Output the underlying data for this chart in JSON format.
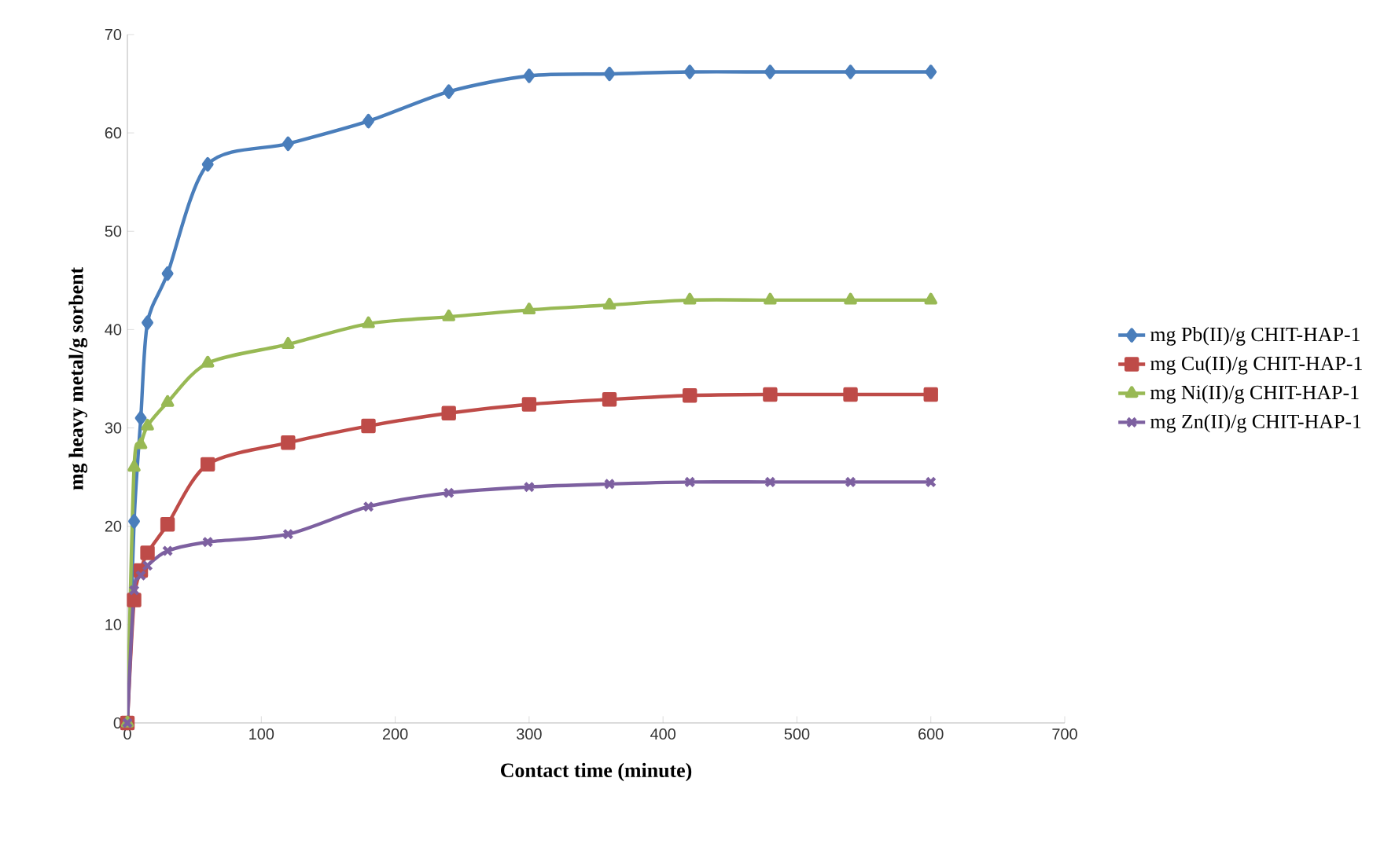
{
  "chart_data": {
    "type": "line",
    "xlabel": "Contact time (minute)",
    "ylabel": "mg heavy metal/g sorbent",
    "x": [
      0,
      5,
      10,
      15,
      30,
      60,
      120,
      180,
      240,
      300,
      360,
      420,
      480,
      540,
      600
    ],
    "series": [
      {
        "name": "mg Pb(II)/g CHIT-HAP-1",
        "color": "#4a7ebb",
        "marker": "diamond",
        "values": [
          0,
          20.5,
          31,
          40.7,
          45.7,
          56.8,
          58.9,
          61.2,
          64.2,
          65.8,
          66,
          66.2,
          66.2,
          66.2,
          66.2
        ]
      },
      {
        "name": "mg Cu(II)/g CHIT-HAP-1",
        "color": "#be4b48",
        "marker": "square",
        "values": [
          0,
          12.5,
          15.5,
          17.3,
          20.2,
          26.3,
          28.5,
          30.2,
          31.5,
          32.4,
          32.9,
          33.3,
          33.4,
          33.4,
          33.4
        ]
      },
      {
        "name": "mg Ni(II)/g CHIT-HAP-1",
        "color": "#98b954",
        "marker": "triangle",
        "values": [
          0,
          26,
          28.3,
          30.2,
          32.6,
          36.6,
          38.5,
          40.6,
          41.3,
          42,
          42.5,
          43,
          43,
          43,
          43
        ]
      },
      {
        "name": "mg Zn(II)/g CHIT-HAP-1",
        "color": "#7d60a0",
        "marker": "cross",
        "values": [
          0,
          13.5,
          15,
          16,
          17.5,
          18.4,
          19.2,
          22,
          23.4,
          24,
          24.3,
          24.5,
          24.5,
          24.5,
          24.5
        ]
      }
    ],
    "xlim": [
      0,
      700
    ],
    "xticks": [
      0,
      100,
      200,
      300,
      400,
      500,
      600,
      700
    ],
    "ylim": [
      0,
      70
    ],
    "yticks": [
      0,
      10,
      20,
      30,
      40,
      50,
      60,
      70
    ],
    "grid": false,
    "legend": "right",
    "line_style": "solid"
  }
}
